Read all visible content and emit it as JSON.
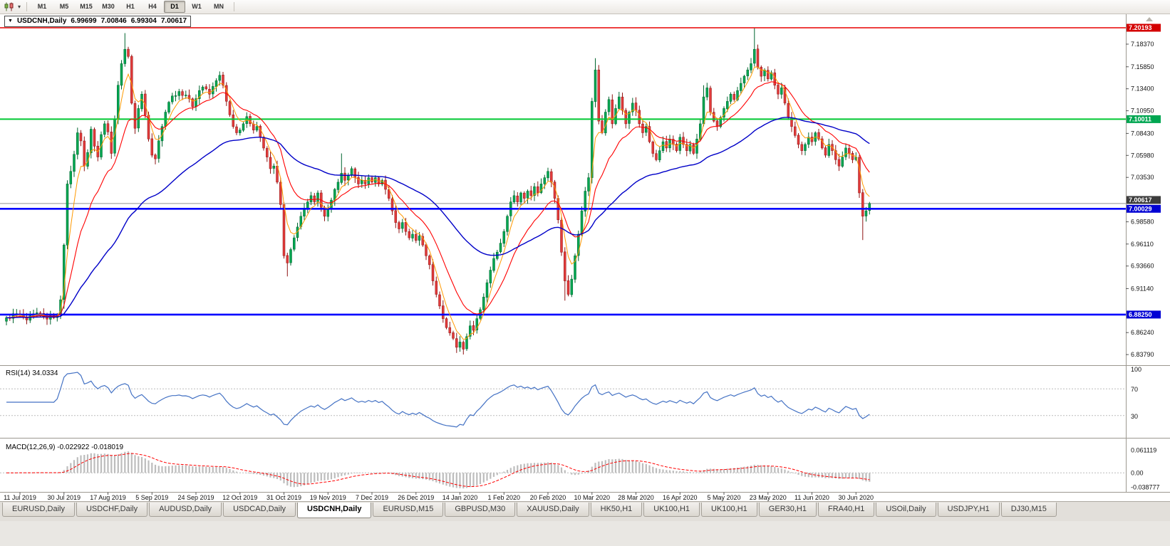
{
  "icons": {
    "symbol_caret": "▼",
    "dropdown_caret": "▾"
  },
  "toolbar": {
    "timeframes": [
      {
        "label": "M1"
      },
      {
        "label": "M5"
      },
      {
        "label": "M15"
      },
      {
        "label": "M30"
      },
      {
        "label": "H1"
      },
      {
        "label": "H4"
      },
      {
        "label": "D1",
        "active": true
      },
      {
        "label": "W1"
      },
      {
        "label": "MN"
      }
    ]
  },
  "tabs": {
    "items": [
      {
        "label": "EURUSD,Daily"
      },
      {
        "label": "USDCHF,Daily"
      },
      {
        "label": "AUDUSD,Daily"
      },
      {
        "label": "USDCAD,Daily"
      },
      {
        "label": "USDCNH,Daily",
        "active": true
      },
      {
        "label": "EURUSD,M15"
      },
      {
        "label": "GBPUSD,M30"
      },
      {
        "label": "XAUUSD,Daily"
      },
      {
        "label": "HK50,H1"
      },
      {
        "label": "UK100,H1"
      },
      {
        "label": "UK100,H1"
      },
      {
        "label": "GER30,H1"
      },
      {
        "label": "FRA40,H1"
      },
      {
        "label": "USOil,Daily"
      },
      {
        "label": "USDJPY,H1"
      },
      {
        "label": "DJ30,M15"
      }
    ]
  },
  "chart_data": {
    "type": "candlestick",
    "symbol": "USDCNH",
    "timeframe": "Daily",
    "symbol_label": "USDCNH,Daily",
    "ohlc_text": {
      "open": "6.99699",
      "high": "7.00846",
      "low": "6.99304",
      "close": "7.00617"
    },
    "ohlc": {
      "open": 6.99699,
      "high": 7.00846,
      "low": 6.99304,
      "close": 7.00617
    },
    "axis_range": {
      "top": 7.2075,
      "bottom": 6.8285
    },
    "candles_total": 256,
    "colors": {
      "up": {
        "fill": "#00A651",
        "stroke": "#00662F"
      },
      "down": {
        "fill": "#E23B3B",
        "stroke": "#8F1414"
      }
    },
    "y_ticks": [
      {
        "label": "7.18370",
        "value": 7.1837
      },
      {
        "label": "7.15850",
        "value": 7.1585
      },
      {
        "label": "7.13400",
        "value": 7.134
      },
      {
        "label": "7.10950",
        "value": 7.1095
      },
      {
        "label": "7.08430",
        "value": 7.0843
      },
      {
        "label": "7.05980",
        "value": 7.0598
      },
      {
        "label": "7.03530",
        "value": 7.0353
      },
      {
        "label": "6.98580",
        "value": 6.9858
      },
      {
        "label": "6.96110",
        "value": 6.9611
      },
      {
        "label": "6.93660",
        "value": 6.9366
      },
      {
        "label": "6.91140",
        "value": 6.9114
      },
      {
        "label": "6.86240",
        "value": 6.8624
      },
      {
        "label": "6.83790",
        "value": 6.8379
      }
    ],
    "h_lines": [
      {
        "price": 7.20193,
        "label": "7.20193",
        "color": "#E80000",
        "width": 1.6,
        "box": "#D40000"
      },
      {
        "price": 7.10011,
        "label": "7.10011",
        "color": "#00C832",
        "width": 2,
        "box": "#00A651"
      },
      {
        "price": 7.00029,
        "label": "7.00029",
        "color": "#0000FF",
        "width": 2.6,
        "box": "#0000D4"
      },
      {
        "price": 6.8825,
        "label": "6.88250",
        "color": "#0000FF",
        "width": 2.6,
        "box": "#0000D4"
      }
    ],
    "current_price": {
      "value": 7.00617,
      "label": "7.00617",
      "box": "#3C3C3C"
    },
    "dates": [
      "11 Jul 2019",
      "30 Jul 2019",
      "17 Aug 2019",
      "5 Sep 2019",
      "24 Sep 2019",
      "12 Oct 2019",
      "31 Oct 2019",
      "19 Nov 2019",
      "7 Dec 2019",
      "26 Dec 2019",
      "14 Jan 2020",
      "1 Feb 2020",
      "20 Feb 2020",
      "10 Mar 2020",
      "28 Mar 2020",
      "16 Apr 2020",
      "5 May 2020",
      "23 May 2020",
      "11 Jun 2020",
      "30 Jun 2020"
    ],
    "moving_averages": [
      {
        "period": 5,
        "color": "#FF9900",
        "width": 1
      },
      {
        "period": 15,
        "color": "#FF0000",
        "width": 1.1
      },
      {
        "period": 55,
        "color": "#0000C8",
        "width": 1.4
      }
    ],
    "indicators": {
      "rsi": {
        "title_full": "RSI(14) 34.0334",
        "value": 34.0334,
        "period": 14,
        "color": "#4472C4",
        "levels": [
          70,
          30
        ],
        "scale": [
          {
            "label": "100",
            "value": 100
          },
          {
            "label": "70",
            "value": 70
          },
          {
            "label": "30",
            "value": 30
          }
        ]
      },
      "macd": {
        "title_full": "MACD(12,26,9) -0.022922 -0.018019",
        "value": -0.022922,
        "signal_value": -0.018019,
        "hist_color": "#BDBDBD",
        "signal_color": "#FF0000",
        "range": [
          -0.0455,
          0.085
        ],
        "scale": [
          {
            "label": "0.061119",
            "value": 0.061119
          },
          {
            "label": "0.00",
            "value": 0
          },
          {
            "label": "-0.038777",
            "value": -0.038777
          }
        ]
      }
    },
    "close_anchors": [
      [
        0,
        6.879
      ],
      [
        3,
        6.8835
      ],
      [
        6,
        6.8765
      ],
      [
        9,
        6.8845
      ],
      [
        12,
        6.8775
      ],
      [
        15,
        6.8825
      ],
      [
        16,
        6.899
      ],
      [
        17,
        6.96
      ],
      [
        18,
        7.028
      ],
      [
        19,
        7.042
      ],
      [
        20,
        7.061
      ],
      [
        21,
        7.085
      ],
      [
        22,
        7.076
      ],
      [
        23,
        7.048
      ],
      [
        24,
        7.063
      ],
      [
        25,
        7.089
      ],
      [
        26,
        7.07
      ],
      [
        27,
        7.058
      ],
      [
        28,
        7.083
      ],
      [
        29,
        7.095
      ],
      [
        30,
        7.086
      ],
      [
        31,
        7.062
      ],
      [
        32,
        7.1
      ],
      [
        33,
        7.138
      ],
      [
        34,
        7.162
      ],
      [
        35,
        7.178
      ],
      [
        36,
        7.17
      ],
      [
        37,
        7.118
      ],
      [
        38,
        7.09
      ],
      [
        39,
        7.112
      ],
      [
        40,
        7.128
      ],
      [
        41,
        7.105
      ],
      [
        42,
        7.078
      ],
      [
        43,
        7.06
      ],
      [
        44,
        7.056
      ],
      [
        45,
        7.076
      ],
      [
        46,
        7.092
      ],
      [
        47,
        7.108
      ],
      [
        48,
        7.119
      ],
      [
        49,
        7.126
      ],
      [
        51,
        7.131
      ],
      [
        53,
        7.127
      ],
      [
        55,
        7.114
      ],
      [
        56,
        7.123
      ],
      [
        57,
        7.132
      ],
      [
        58,
        7.136
      ],
      [
        60,
        7.128
      ],
      [
        62,
        7.143
      ],
      [
        63,
        7.149
      ],
      [
        64,
        7.138
      ],
      [
        65,
        7.12
      ],
      [
        66,
        7.105
      ],
      [
        67,
        7.092
      ],
      [
        68,
        7.085
      ],
      [
        69,
        7.088
      ],
      [
        70,
        7.095
      ],
      [
        71,
        7.103
      ],
      [
        72,
        7.095
      ],
      [
        73,
        7.088
      ],
      [
        74,
        7.092
      ],
      [
        75,
        7.08
      ],
      [
        76,
        7.068
      ],
      [
        77,
        7.058
      ],
      [
        78,
        7.045
      ],
      [
        79,
        7.048
      ],
      [
        80,
        7.03
      ],
      [
        81,
        7.005
      ],
      [
        82,
        6.948
      ],
      [
        83,
        6.94
      ],
      [
        84,
        6.955
      ],
      [
        85,
        6.968
      ],
      [
        86,
        6.98
      ],
      [
        87,
        6.992
      ],
      [
        88,
        7.0
      ],
      [
        89,
        7.008
      ],
      [
        90,
        7.015
      ],
      [
        91,
        7.008
      ],
      [
        92,
        7.018
      ],
      [
        93,
        7.002
      ],
      [
        94,
        6.992
      ],
      [
        95,
        7.0
      ],
      [
        96,
        7.01
      ],
      [
        97,
        7.022
      ],
      [
        98,
        7.03
      ],
      [
        99,
        7.04
      ],
      [
        100,
        7.032
      ],
      [
        101,
        7.038
      ],
      [
        102,
        7.045
      ],
      [
        103,
        7.035
      ],
      [
        104,
        7.028
      ],
      [
        105,
        7.032
      ],
      [
        106,
        7.028
      ],
      [
        107,
        7.035
      ],
      [
        108,
        7.03
      ],
      [
        109,
        7.035
      ],
      [
        110,
        7.028
      ],
      [
        111,
        7.032
      ],
      [
        112,
        7.022
      ],
      [
        113,
        7.012
      ],
      [
        114,
        6.998
      ],
      [
        115,
        6.985
      ],
      [
        116,
        6.978
      ],
      [
        117,
        6.985
      ],
      [
        118,
        6.975
      ],
      [
        119,
        6.968
      ],
      [
        120,
        6.972
      ],
      [
        121,
        6.965
      ],
      [
        122,
        6.97
      ],
      [
        123,
        6.96
      ],
      [
        124,
        6.948
      ],
      [
        125,
        6.938
      ],
      [
        126,
        6.92
      ],
      [
        127,
        6.905
      ],
      [
        128,
        6.892
      ],
      [
        129,
        6.878
      ],
      [
        130,
        6.868
      ],
      [
        131,
        6.862
      ],
      [
        132,
        6.856
      ],
      [
        133,
        6.846
      ],
      [
        134,
        6.852
      ],
      [
        135,
        6.844
      ],
      [
        136,
        6.858
      ],
      [
        137,
        6.87
      ],
      [
        138,
        6.865
      ],
      [
        139,
        6.878
      ],
      [
        140,
        6.888
      ],
      [
        141,
        6.902
      ],
      [
        142,
        6.918
      ],
      [
        143,
        6.932
      ],
      [
        144,
        6.945
      ],
      [
        145,
        6.952
      ],
      [
        146,
        6.962
      ],
      [
        147,
        6.975
      ],
      [
        148,
        6.992
      ],
      [
        149,
        7.008
      ],
      [
        150,
        7.015
      ],
      [
        151,
        7.008
      ],
      [
        152,
        7.018
      ],
      [
        153,
        7.012
      ],
      [
        154,
        7.02
      ],
      [
        155,
        7.015
      ],
      [
        156,
        7.025
      ],
      [
        157,
        7.018
      ],
      [
        158,
        7.028
      ],
      [
        159,
        7.035
      ],
      [
        160,
        7.042
      ],
      [
        161,
        7.03
      ],
      [
        162,
        7.012
      ],
      [
        163,
        6.988
      ],
      [
        164,
        6.952
      ],
      [
        165,
        6.92
      ],
      [
        166,
        6.905
      ],
      [
        167,
        6.922
      ],
      [
        168,
        6.948
      ],
      [
        169,
        6.972
      ],
      [
        170,
        6.998
      ],
      [
        171,
        7.02
      ],
      [
        172,
        7.035
      ],
      [
        173,
        7.12
      ],
      [
        174,
        7.155
      ],
      [
        175,
        7.098
      ],
      [
        176,
        7.085
      ],
      [
        177,
        7.108
      ],
      [
        178,
        7.122
      ],
      [
        179,
        7.095
      ],
      [
        180,
        7.112
      ],
      [
        181,
        7.125
      ],
      [
        182,
        7.11
      ],
      [
        183,
        7.095
      ],
      [
        184,
        7.108
      ],
      [
        185,
        7.118
      ],
      [
        186,
        7.11
      ],
      [
        187,
        7.095
      ],
      [
        188,
        7.085
      ],
      [
        189,
        7.092
      ],
      [
        190,
        7.075
      ],
      [
        191,
        7.062
      ],
      [
        192,
        7.055
      ],
      [
        193,
        7.065
      ],
      [
        194,
        7.075
      ],
      [
        195,
        7.068
      ],
      [
        196,
        7.078
      ],
      [
        197,
        7.072
      ],
      [
        198,
        7.065
      ],
      [
        199,
        7.08
      ],
      [
        200,
        7.072
      ],
      [
        201,
        7.065
      ],
      [
        202,
        7.072
      ],
      [
        203,
        7.062
      ],
      [
        204,
        7.078
      ],
      [
        205,
        7.095
      ],
      [
        206,
        7.125
      ],
      [
        207,
        7.135
      ],
      [
        208,
        7.108
      ],
      [
        209,
        7.098
      ],
      [
        210,
        7.092
      ],
      [
        211,
        7.102
      ],
      [
        212,
        7.112
      ],
      [
        213,
        7.12
      ],
      [
        214,
        7.128
      ],
      [
        215,
        7.122
      ],
      [
        216,
        7.132
      ],
      [
        217,
        7.14
      ],
      [
        218,
        7.148
      ],
      [
        219,
        7.155
      ],
      [
        220,
        7.162
      ],
      [
        221,
        7.178
      ],
      [
        222,
        7.158
      ],
      [
        223,
        7.148
      ],
      [
        224,
        7.155
      ],
      [
        225,
        7.145
      ],
      [
        226,
        7.152
      ],
      [
        227,
        7.138
      ],
      [
        228,
        7.128
      ],
      [
        229,
        7.135
      ],
      [
        230,
        7.118
      ],
      [
        231,
        7.102
      ],
      [
        232,
        7.092
      ],
      [
        233,
        7.082
      ],
      [
        234,
        7.072
      ],
      [
        235,
        7.065
      ],
      [
        236,
        7.072
      ],
      [
        237,
        7.08
      ],
      [
        238,
        7.075
      ],
      [
        239,
        7.085
      ],
      [
        240,
        7.078
      ],
      [
        241,
        7.068
      ],
      [
        242,
        7.06
      ],
      [
        243,
        7.072
      ],
      [
        244,
        7.065
      ],
      [
        245,
        7.055
      ],
      [
        246,
        7.048
      ],
      [
        247,
        7.058
      ],
      [
        248,
        7.068
      ],
      [
        249,
        7.062
      ],
      [
        250,
        7.055
      ],
      [
        251,
        7.058
      ],
      [
        252,
        7.018
      ],
      [
        253,
        6.992
      ],
      [
        254,
        6.998
      ],
      [
        255,
        7.00617
      ]
    ],
    "wick_overrides": {
      "high": {
        "35": 7.196,
        "99": 7.062,
        "174": 7.168,
        "206": 7.138,
        "221": 7.2015
      },
      "low": {
        "17": 6.889,
        "83": 6.925,
        "135": 6.838,
        "165": 6.898,
        "253": 6.9655
      }
    }
  }
}
